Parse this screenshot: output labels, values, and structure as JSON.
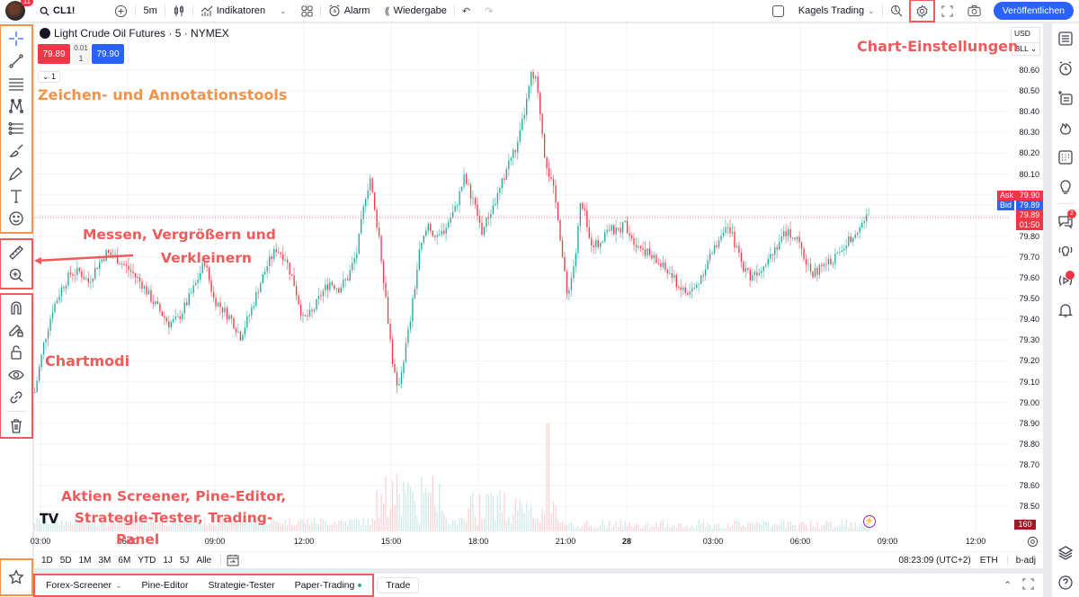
{
  "topbar": {
    "notification_count": "11",
    "symbol": "CL1!",
    "interval": "5m",
    "indicators_label": "Indikatoren",
    "alarm_label": "Alarm",
    "replay_label": "Wiedergabe",
    "layout_name": "Kagels Trading",
    "publish_label": "Veröffentlichen"
  },
  "legend": {
    "title": "Light Crude Oil Futures · 5 · NYMEX",
    "sell_price": "79.89",
    "buy_price": "79.90",
    "spread": "0.01",
    "qty": "1",
    "collapse_count": "1"
  },
  "price_axis": {
    "currency": "USD",
    "unit": "BLL",
    "ticks": [
      "80.60",
      "80.50",
      "80.40",
      "80.30",
      "80.20",
      "80.10",
      "79.80",
      "79.70",
      "79.60",
      "79.50",
      "79.40",
      "79.30",
      "79.20",
      "79.10",
      "79.00",
      "78.90",
      "78.80",
      "78.70",
      "78.60",
      "78.50"
    ],
    "ask_label": "Ask",
    "ask_value": "79.90",
    "bid_label": "Bid",
    "bid_value": "79.89",
    "last_value": "79.89",
    "countdown": "01:50",
    "volume_value": "160"
  },
  "time_axis": {
    "labels": [
      "03:00",
      "06:00",
      "09:00",
      "12:00",
      "15:00",
      "18:00",
      "21:00",
      "28",
      "03:00",
      "06:00",
      "09:00",
      "12:00"
    ]
  },
  "range_bar": {
    "ranges": [
      "1D",
      "5D",
      "1M",
      "3M",
      "6M",
      "YTD",
      "1J",
      "5J",
      "Alle"
    ],
    "clock": "08:23:09 (UTC+2)",
    "session": "ETH",
    "adjust": "b-adj"
  },
  "bottom_tabs": {
    "screener": "Forex-Screener",
    "pine": "Pine-Editor",
    "strategy": "Strategie-Tester",
    "paper": "Paper-Trading",
    "trade": "Trade"
  },
  "annotations": {
    "drawing": "Zeichen- und Annotationstools",
    "measure_1": "Messen, Vergrößern und",
    "measure_2": "Verkleinern",
    "modes": "Chartmodi",
    "panel_1": "Aktien Screener, Pine-Editor,",
    "panel_2": "Strategie-Tester, Trading-",
    "panel_3": "Panel",
    "settings": "Chart-Einstellungen"
  },
  "right_sidebar": {
    "chat_badge": "2"
  },
  "colors": {
    "up": "#26a69a",
    "down": "#f23645",
    "accent": "#2962ff",
    "annotation_orange": "#f5924a",
    "annotation_red": "#f05a5a"
  },
  "chart_data": {
    "type": "candlestick",
    "title": "Light Crude Oil Futures · 5 · NYMEX",
    "xlabel": "",
    "ylabel": "USD/BLL",
    "ylim": [
      78.45,
      80.65
    ],
    "grid": true,
    "x_ticks": [
      "03:00",
      "06:00",
      "09:00",
      "12:00",
      "15:00",
      "18:00",
      "21:00",
      "28",
      "03:00",
      "06:00",
      "09:00",
      "12:00"
    ],
    "close_path": [
      [
        0,
        79.05
      ],
      [
        2,
        79.28
      ],
      [
        4,
        79.45
      ],
      [
        6,
        79.55
      ],
      [
        8,
        79.62
      ],
      [
        10,
        79.63
      ],
      [
        12,
        79.58
      ],
      [
        14,
        79.66
      ],
      [
        16,
        79.72
      ],
      [
        18,
        79.7
      ],
      [
        20,
        79.66
      ],
      [
        22,
        79.62
      ],
      [
        24,
        79.57
      ],
      [
        26,
        79.5
      ],
      [
        28,
        79.44
      ],
      [
        30,
        79.38
      ],
      [
        32,
        79.4
      ],
      [
        34,
        79.48
      ],
      [
        36,
        79.57
      ],
      [
        38,
        79.68
      ],
      [
        40,
        79.5
      ],
      [
        42,
        79.45
      ],
      [
        44,
        79.4
      ],
      [
        46,
        79.32
      ],
      [
        48,
        79.42
      ],
      [
        50,
        79.55
      ],
      [
        52,
        79.66
      ],
      [
        54,
        79.74
      ],
      [
        56,
        79.7
      ],
      [
        58,
        79.57
      ],
      [
        60,
        79.4
      ],
      [
        62,
        79.43
      ],
      [
        64,
        79.52
      ],
      [
        66,
        79.58
      ],
      [
        68,
        79.55
      ],
      [
        70,
        79.6
      ],
      [
        72,
        79.72
      ],
      [
        74,
        80.0
      ],
      [
        75,
        80.08
      ],
      [
        76,
        79.92
      ],
      [
        77,
        79.8
      ],
      [
        78,
        79.6
      ],
      [
        79,
        79.4
      ],
      [
        80,
        79.2
      ],
      [
        81,
        79.06
      ],
      [
        82,
        79.15
      ],
      [
        84,
        79.4
      ],
      [
        86,
        79.72
      ],
      [
        88,
        79.86
      ],
      [
        90,
        79.78
      ],
      [
        92,
        79.85
      ],
      [
        94,
        79.93
      ],
      [
        96,
        80.08
      ],
      [
        98,
        79.98
      ],
      [
        100,
        79.82
      ],
      [
        102,
        79.92
      ],
      [
        104,
        80.02
      ],
      [
        106,
        80.16
      ],
      [
        108,
        80.24
      ],
      [
        110,
        80.45
      ],
      [
        111,
        80.57
      ],
      [
        112,
        80.55
      ],
      [
        113,
        80.4
      ],
      [
        114,
        80.2
      ],
      [
        115,
        80.1
      ],
      [
        116,
        80.02
      ],
      [
        117,
        79.9
      ],
      [
        118,
        79.7
      ],
      [
        119,
        79.52
      ],
      [
        120,
        79.6
      ],
      [
        121,
        79.72
      ],
      [
        122,
        79.95
      ],
      [
        123,
        79.9
      ],
      [
        124,
        79.78
      ],
      [
        126,
        79.76
      ],
      [
        128,
        79.84
      ],
      [
        130,
        79.82
      ],
      [
        132,
        79.86
      ],
      [
        134,
        79.78
      ],
      [
        136,
        79.74
      ],
      [
        138,
        79.7
      ],
      [
        140,
        79.66
      ],
      [
        142,
        79.62
      ],
      [
        144,
        79.56
      ],
      [
        146,
        79.52
      ],
      [
        148,
        79.56
      ],
      [
        150,
        79.66
      ],
      [
        152,
        79.74
      ],
      [
        154,
        79.84
      ],
      [
        156,
        79.8
      ],
      [
        158,
        79.67
      ],
      [
        160,
        79.61
      ],
      [
        162,
        79.64
      ],
      [
        164,
        79.7
      ],
      [
        166,
        79.76
      ],
      [
        168,
        79.82
      ],
      [
        170,
        79.8
      ],
      [
        172,
        79.7
      ],
      [
        174,
        79.62
      ],
      [
        176,
        79.65
      ],
      [
        178,
        79.68
      ],
      [
        180,
        79.72
      ],
      [
        182,
        79.78
      ],
      [
        184,
        79.84
      ],
      [
        186,
        79.89
      ]
    ],
    "volume_peak_label": "160"
  }
}
